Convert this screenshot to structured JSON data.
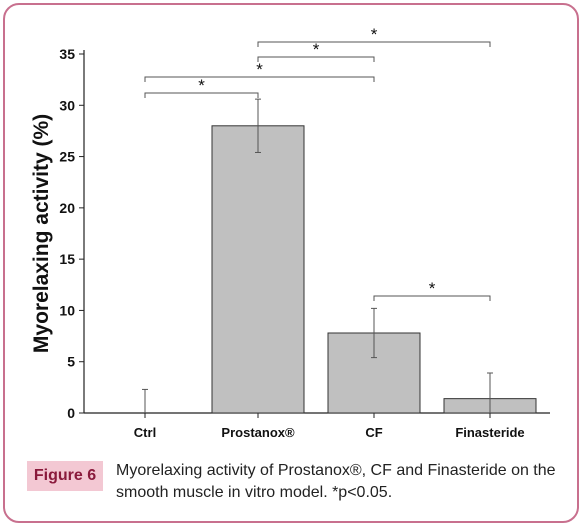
{
  "figure": {
    "label": "Figure 6",
    "caption": "Myorelaxing activity of Prostanox®, CF and Finasteride on the smooth muscle in vitro model. *p<0.05."
  },
  "colors": {
    "frame": "#c8708e",
    "bar_fill": "#c0c0c0",
    "figure_label_bg": "#f3c8d3",
    "figure_label_text": "#8a1a3c"
  },
  "chart_data": {
    "type": "bar",
    "title": "",
    "xlabel": "",
    "ylabel": "Myorelaxing activity (%)",
    "ylim": [
      0,
      35
    ],
    "yticks": [
      0,
      5,
      10,
      15,
      20,
      25,
      30,
      35
    ],
    "categories": [
      "Ctrl",
      "Prostanox®",
      "CF",
      "Finasteride"
    ],
    "values": [
      0,
      28,
      7.8,
      1.4
    ],
    "errors": [
      2.3,
      2.6,
      2.4,
      2.5
    ],
    "grid": false,
    "significance": [
      {
        "from": "Ctrl",
        "to": "Prostanox®",
        "label": "*"
      },
      {
        "from": "Ctrl",
        "to": "CF",
        "label": "*"
      },
      {
        "from": "Prostanox®",
        "to": "CF",
        "label": "*"
      },
      {
        "from": "Prostanox®",
        "to": "Finasteride",
        "label": "*"
      },
      {
        "from": "CF",
        "to": "Finasteride",
        "label": "*"
      }
    ]
  }
}
